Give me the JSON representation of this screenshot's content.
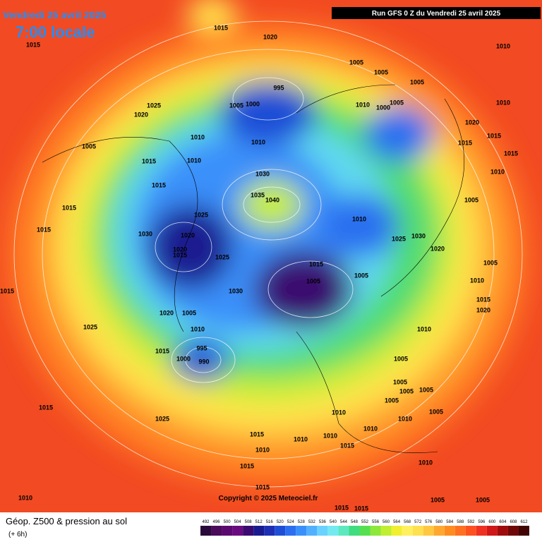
{
  "header": {
    "date": "Vendredi 25 avril 2025",
    "time": "7:00 locale",
    "run": "Run GFS 0 Z du Vendredi 25 avril 2025"
  },
  "copyright": "Copyright © 2025 Meteociel.fr",
  "footer": {
    "title": "Géop. Z500 & pression au sol",
    "step": "(+ 6h)"
  },
  "colorbar": {
    "labels": [
      "492",
      "496",
      "500",
      "504",
      "508",
      "512",
      "516",
      "520",
      "524",
      "528",
      "532",
      "536",
      "540",
      "544",
      "548",
      "552",
      "556",
      "560",
      "564",
      "568",
      "572",
      "576",
      "580",
      "584",
      "588",
      "592",
      "596",
      "600",
      "604",
      "608",
      "612"
    ],
    "colors": [
      "#2a0a3a",
      "#4b0b5a",
      "#5a0a6e",
      "#6a0a80",
      "#3a0a70",
      "#1a1a90",
      "#1e2fb4",
      "#1f4ed6",
      "#2b6ff0",
      "#3a90fa",
      "#52b0ff",
      "#6ad2ff",
      "#74eaf0",
      "#5de8c0",
      "#40dc80",
      "#56e050",
      "#8ce83a",
      "#c0ee30",
      "#f0f030",
      "#fff060",
      "#ffe050",
      "#ffc840",
      "#ffa830",
      "#ff8c20",
      "#ff7020",
      "#ff5020",
      "#f03020",
      "#d01818",
      "#a00c0c",
      "#700808",
      "#400404"
    ]
  },
  "isobar_labels": [
    "1015",
    "1020",
    "1015",
    "1010",
    "1005",
    "1005",
    "995",
    "1005",
    "1025",
    "1005",
    "1000",
    "1010",
    "1000",
    "1005",
    "1010",
    "1020",
    "1020",
    "1010",
    "1015",
    "1010",
    "1005",
    "1015",
    "1015",
    "1010",
    "1015",
    "1030",
    "1010",
    "1015",
    "1035",
    "1040",
    "1005",
    "1015",
    "1025",
    "1010",
    "1030",
    "1020",
    "1025",
    "1030",
    "1015",
    "1020",
    "1015",
    "1025",
    "1020",
    "1005",
    "1015",
    "1005",
    "1005",
    "1030",
    "1010",
    "1015",
    "1020",
    "1005",
    "1015",
    "1020",
    "1010",
    "1025",
    "1010",
    "995",
    "1015",
    "1000",
    "990",
    "1005",
    "1005",
    "1005",
    "1005",
    "1005",
    "1010",
    "1005",
    "1025",
    "1015",
    "1010",
    "1010",
    "1010",
    "1015",
    "1010",
    "1015",
    "1010",
    "1010",
    "1015",
    "1015",
    "1010",
    "1005",
    "1005",
    "1015",
    "1015"
  ]
}
